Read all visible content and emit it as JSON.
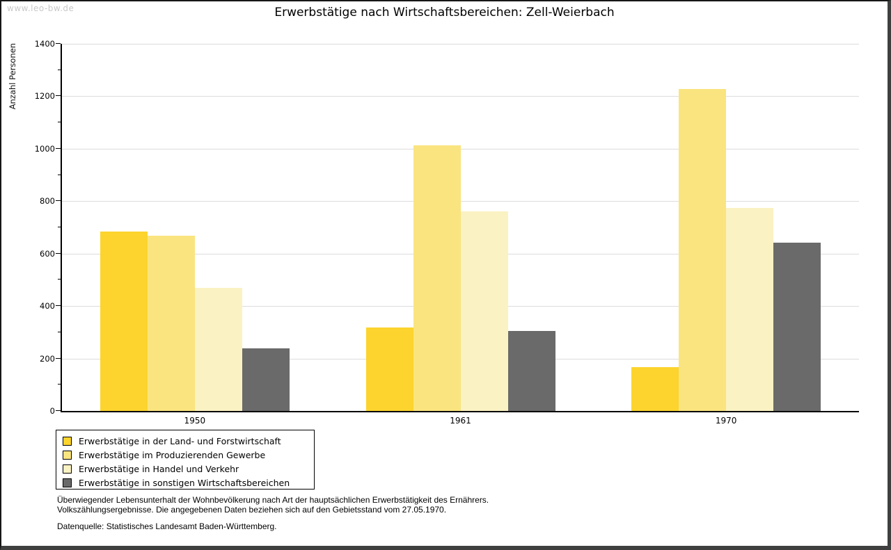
{
  "watermark": "www.leo-bw.de",
  "title": "Erwerbstätige nach Wirtschaftsbereichen: Zell-Weierbach",
  "chart_data": {
    "type": "bar",
    "title": "Erwerbstätige nach Wirtschaftsbereichen: Zell-Weierbach",
    "xlabel": "",
    "ylabel": "Anzahl Personen",
    "ylim": [
      0,
      1400
    ],
    "ytick_step": 200,
    "yminor_step": 100,
    "grid": true,
    "legend_position": "bottom-left",
    "categories": [
      "1950",
      "1961",
      "1970"
    ],
    "series": [
      {
        "name": "Erwerbstätige in der Land- und Forstwirtschaft",
        "color": "#FCD42D",
        "values": [
          684,
          318,
          168
        ]
      },
      {
        "name": "Erwerbstätige im Produzierenden Gewerbe",
        "color": "#FAE47F",
        "values": [
          667,
          1013,
          1228
        ]
      },
      {
        "name": "Erwerbstätige in Handel und Verkehr",
        "color": "#FBF2C3",
        "values": [
          470,
          762,
          773
        ]
      },
      {
        "name": "Erwerbstätige in sonstigen Wirtschaftsbereichen",
        "color": "#6A6A6A",
        "values": [
          240,
          304,
          641
        ]
      }
    ],
    "colors": {
      "gridline": "#dcdcdc",
      "axis": "#000000",
      "watermark": "#c9c9c9"
    }
  },
  "footnotes": {
    "line1": "Überwiegender Lebensunterhalt der Wohnbevölkerung nach Art der hauptsächlichen Erwerbstätigkeit des Ernährers.",
    "line2": "Volkszählungsergebnisse. Die angegebenen Daten beziehen sich auf den Gebietsstand vom 27.05.1970.",
    "source": "Datenquelle: Statistisches Landesamt Baden-Württemberg."
  }
}
